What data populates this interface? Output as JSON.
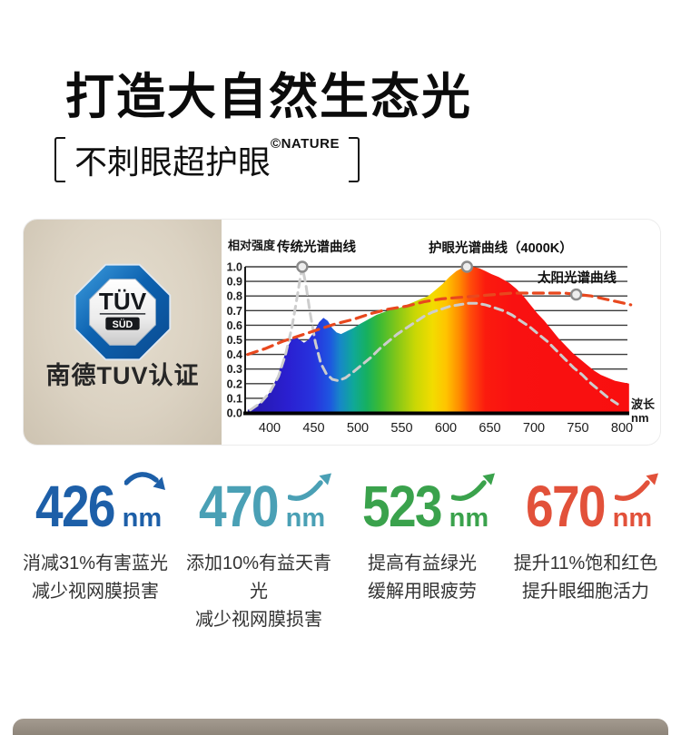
{
  "header": {
    "title": "打造大自然生态光",
    "subtitle": "不刺眼超护眼",
    "subtitle_mark": "©NATURE"
  },
  "certification": {
    "badge_line1": "TÜV",
    "badge_line2": "SÜD",
    "label": "南德TUV认证"
  },
  "chart_data": {
    "type": "area",
    "ylabel": "相对强度",
    "xlabel_line1": "波长",
    "xlabel_line2": "nm",
    "x_ticks": [
      400,
      450,
      500,
      550,
      600,
      650,
      700,
      750,
      800
    ],
    "y_ticks": [
      "1.0",
      "0.9",
      "0.8",
      "0.7",
      "0.6",
      "0.5",
      "0.4",
      "0.3",
      "0.2",
      "0.1",
      "0.0"
    ],
    "xlim": [
      375,
      812
    ],
    "ylim": [
      0,
      1.0
    ],
    "grid": true,
    "series": [
      {
        "id": "eyecare",
        "name": "护眼光谱曲线（4000K）",
        "style": "filled-spectrum",
        "points": [
          [
            375,
            0.02
          ],
          [
            383,
            0.04
          ],
          [
            392,
            0.08
          ],
          [
            400,
            0.14
          ],
          [
            408,
            0.24
          ],
          [
            415,
            0.36
          ],
          [
            421,
            0.46
          ],
          [
            426,
            0.51
          ],
          [
            430,
            0.52
          ],
          [
            434,
            0.5
          ],
          [
            439,
            0.48
          ],
          [
            444,
            0.5
          ],
          [
            450,
            0.55
          ],
          [
            456,
            0.62
          ],
          [
            461,
            0.65
          ],
          [
            466,
            0.63
          ],
          [
            471,
            0.58
          ],
          [
            476,
            0.55
          ],
          [
            481,
            0.54
          ],
          [
            488,
            0.56
          ],
          [
            495,
            0.58
          ],
          [
            503,
            0.61
          ],
          [
            512,
            0.64
          ],
          [
            521,
            0.67
          ],
          [
            530,
            0.69
          ],
          [
            539,
            0.71
          ],
          [
            548,
            0.72
          ],
          [
            556,
            0.74
          ],
          [
            564,
            0.76
          ],
          [
            572,
            0.78
          ],
          [
            580,
            0.8
          ],
          [
            588,
            0.84
          ],
          [
            596,
            0.88
          ],
          [
            604,
            0.93
          ],
          [
            612,
            0.97
          ],
          [
            618,
            0.99
          ],
          [
            624,
            1.0
          ],
          [
            631,
            1.0
          ],
          [
            638,
            0.99
          ],
          [
            645,
            0.97
          ],
          [
            652,
            0.95
          ],
          [
            660,
            0.93
          ],
          [
            666,
            0.91
          ],
          [
            672,
            0.89
          ],
          [
            680,
            0.85
          ],
          [
            688,
            0.8
          ],
          [
            696,
            0.74
          ],
          [
            704,
            0.68
          ],
          [
            712,
            0.63
          ],
          [
            720,
            0.57
          ],
          [
            728,
            0.51
          ],
          [
            736,
            0.46
          ],
          [
            744,
            0.41
          ],
          [
            752,
            0.37
          ],
          [
            760,
            0.33
          ],
          [
            768,
            0.29
          ],
          [
            776,
            0.26
          ],
          [
            784,
            0.24
          ],
          [
            792,
            0.22
          ],
          [
            800,
            0.21
          ],
          [
            808,
            0.2
          ]
        ]
      },
      {
        "id": "traditional",
        "name": "传统光谱曲线",
        "style": "dashed-gray",
        "points": [
          [
            378,
            0.02
          ],
          [
            390,
            0.07
          ],
          [
            400,
            0.14
          ],
          [
            410,
            0.25
          ],
          [
            418,
            0.4
          ],
          [
            425,
            0.58
          ],
          [
            430,
            0.75
          ],
          [
            434,
            0.9
          ],
          [
            437,
            1.0
          ],
          [
            441,
            0.88
          ],
          [
            446,
            0.68
          ],
          [
            452,
            0.48
          ],
          [
            458,
            0.34
          ],
          [
            464,
            0.27
          ],
          [
            471,
            0.23
          ],
          [
            478,
            0.22
          ],
          [
            486,
            0.24
          ],
          [
            495,
            0.28
          ],
          [
            505,
            0.33
          ],
          [
            515,
            0.38
          ],
          [
            525,
            0.44
          ],
          [
            535,
            0.49
          ],
          [
            545,
            0.54
          ],
          [
            555,
            0.58
          ],
          [
            565,
            0.62
          ],
          [
            575,
            0.66
          ],
          [
            585,
            0.69
          ],
          [
            595,
            0.71
          ],
          [
            605,
            0.73
          ],
          [
            615,
            0.74
          ],
          [
            625,
            0.75
          ],
          [
            635,
            0.75
          ],
          [
            645,
            0.74
          ],
          [
            655,
            0.72
          ],
          [
            665,
            0.7
          ],
          [
            675,
            0.67
          ],
          [
            685,
            0.63
          ],
          [
            695,
            0.59
          ],
          [
            705,
            0.54
          ],
          [
            715,
            0.49
          ],
          [
            725,
            0.43
          ],
          [
            735,
            0.37
          ],
          [
            745,
            0.31
          ],
          [
            755,
            0.26
          ],
          [
            765,
            0.2
          ],
          [
            775,
            0.15
          ],
          [
            785,
            0.1
          ],
          [
            795,
            0.06
          ]
        ]
      },
      {
        "id": "sun",
        "name": "太阳光谱曲线",
        "style": "dashed-orange",
        "points": [
          [
            375,
            0.4
          ],
          [
            395,
            0.44
          ],
          [
            415,
            0.49
          ],
          [
            435,
            0.53
          ],
          [
            455,
            0.57
          ],
          [
            475,
            0.61
          ],
          [
            495,
            0.64
          ],
          [
            515,
            0.68
          ],
          [
            535,
            0.71
          ],
          [
            555,
            0.73
          ],
          [
            575,
            0.76
          ],
          [
            595,
            0.78
          ],
          [
            615,
            0.79
          ],
          [
            635,
            0.8
          ],
          [
            655,
            0.81
          ],
          [
            675,
            0.82
          ],
          [
            695,
            0.82
          ],
          [
            715,
            0.82
          ],
          [
            735,
            0.82
          ],
          [
            750,
            0.81
          ],
          [
            765,
            0.8
          ],
          [
            780,
            0.78
          ],
          [
            795,
            0.76
          ],
          [
            810,
            0.74
          ]
        ]
      }
    ],
    "markers": [
      {
        "series": "traditional",
        "nm": 437,
        "value": 1.0
      },
      {
        "series": "eyecare",
        "nm": 624,
        "value": 1.0
      },
      {
        "series": "sun",
        "nm": 748,
        "value": 0.81
      }
    ]
  },
  "stats": [
    {
      "value": "426",
      "unit": "nm",
      "color": "#1d5fa8",
      "arrow": "down",
      "lines": [
        "消减31%有害蓝光",
        "减少视网膜损害"
      ]
    },
    {
      "value": "470",
      "unit": "nm",
      "color": "#4aa0b5",
      "arrow": "up",
      "lines": [
        "添加10%有益天青光",
        "减少视网膜损害"
      ]
    },
    {
      "value": "523",
      "unit": "nm",
      "color": "#3aa24c",
      "arrow": "up",
      "lines": [
        "提高有益绿光",
        "缓解用眼疲劳"
      ]
    },
    {
      "value": "670",
      "unit": "nm",
      "color": "#e2513a",
      "arrow": "up",
      "lines": [
        "提升11%饱和红色",
        "提升眼细胞活力"
      ]
    }
  ]
}
